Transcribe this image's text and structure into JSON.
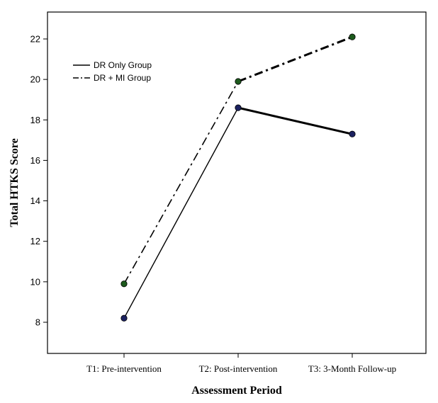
{
  "chart_data": {
    "type": "line",
    "categories": [
      "T1: Pre-intervention",
      "T2: Post-intervention",
      "T3: 3-Month Follow-up"
    ],
    "series": [
      {
        "name": "DR Only Group",
        "values": [
          8.2,
          18.6,
          17.3
        ],
        "line_style": "solid",
        "marker_color": "#1b2160"
      },
      {
        "name": "DR + MI Group",
        "values": [
          9.9,
          19.9,
          22.1
        ],
        "line_style": "dash-dot",
        "marker_color": "#1d5a1d"
      }
    ],
    "title": "",
    "xlabel": "Assessment Period",
    "ylabel": "Total HTKS Score",
    "ylim": [
      7,
      23.5
    ],
    "yticks": [
      8,
      10,
      12,
      14,
      16,
      18,
      20,
      22
    ],
    "grid": false,
    "legend_position": "top-left"
  }
}
